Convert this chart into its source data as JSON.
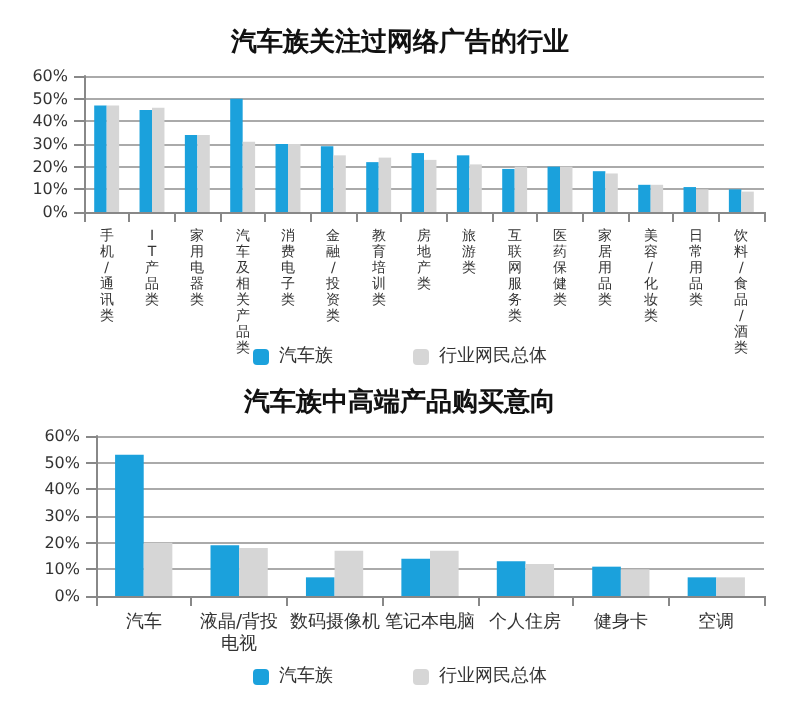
{
  "chart_data": [
    {
      "type": "bar",
      "title": "汽车族关注过网络广告的行业",
      "categories": [
        "手机/通讯类",
        "IT产品类",
        "家用电器类",
        "汽车及相关产品类",
        "消费电子类",
        "金融/投资类",
        "教育培训类",
        "房地产类",
        "旅游类",
        "互联网服务类",
        "医药保健类",
        "家居用品类",
        "美容/化妆类",
        "日常用品类",
        "饮料/食品/酒类"
      ],
      "series": [
        {
          "name": "汽车族",
          "color": "#1ba1dc",
          "values": [
            47,
            45,
            34,
            50,
            30,
            29,
            22,
            26,
            25,
            19,
            20,
            18,
            12,
            11,
            10
          ]
        },
        {
          "name": "行业网民总体",
          "color": "#d6d6d6",
          "values": [
            47,
            46,
            34,
            31,
            30,
            25,
            24,
            23,
            21,
            20,
            20,
            17,
            12,
            10,
            9
          ]
        }
      ],
      "ylim": [
        0,
        60
      ],
      "yticks": [
        {
          "value": 0,
          "label": "0%"
        },
        {
          "value": 10,
          "label": "10%"
        },
        {
          "value": 20,
          "label": "20%"
        },
        {
          "value": 30,
          "label": "30%"
        },
        {
          "value": 40,
          "label": "40%"
        },
        {
          "value": 50,
          "label": "50%"
        },
        {
          "value": 60,
          "label": "60%"
        }
      ],
      "grid": "y",
      "legend": "bottom"
    },
    {
      "type": "bar",
      "title": "汽车族中高端产品购买意向",
      "categories": [
        "汽车",
        "液晶/背投电视",
        "数码摄像机",
        "笔记本电脑",
        "个人住房",
        "健身卡",
        "空调"
      ],
      "series": [
        {
          "name": "汽车族",
          "color": "#1ba1dc",
          "values": [
            53,
            19,
            7,
            14,
            13,
            11,
            7
          ]
        },
        {
          "name": "行业网民总体",
          "color": "#d6d6d6",
          "values": [
            20,
            18,
            17,
            17,
            12,
            10,
            7
          ]
        }
      ],
      "ylim": [
        0,
        60
      ],
      "yticks": [
        {
          "value": 0,
          "label": "0%"
        },
        {
          "value": 10,
          "label": "10%"
        },
        {
          "value": 20,
          "label": "20%"
        },
        {
          "value": 30,
          "label": "30%"
        },
        {
          "value": 40,
          "label": "40%"
        },
        {
          "value": 50,
          "label": "50%"
        },
        {
          "value": 60,
          "label": "60%"
        }
      ],
      "grid": "y",
      "legend": "bottom"
    }
  ]
}
